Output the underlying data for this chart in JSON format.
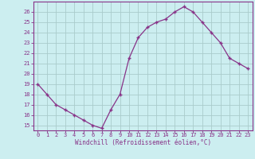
{
  "x": [
    0,
    1,
    2,
    3,
    4,
    5,
    6,
    7,
    8,
    9,
    10,
    11,
    12,
    13,
    14,
    15,
    16,
    17,
    18,
    19,
    20,
    21,
    22,
    23
  ],
  "y": [
    19,
    18,
    17,
    16.5,
    16,
    15.5,
    15,
    14.7,
    16.5,
    18,
    21.5,
    23.5,
    24.5,
    25,
    25.3,
    26,
    26.5,
    26,
    25,
    24,
    23,
    21.5,
    21,
    20.5
  ],
  "line_color": "#883388",
  "marker": "+",
  "bg_color": "#cceef0",
  "grid_color": "#aacccc",
  "xlabel": "Windchill (Refroidissement éolien,°C)",
  "xlim": [
    -0.5,
    23.5
  ],
  "ylim": [
    14.5,
    27
  ],
  "yticks": [
    15,
    16,
    17,
    18,
    19,
    20,
    21,
    22,
    23,
    24,
    25,
    26
  ],
  "xticks": [
    0,
    1,
    2,
    3,
    4,
    5,
    6,
    7,
    8,
    9,
    10,
    11,
    12,
    13,
    14,
    15,
    16,
    17,
    18,
    19,
    20,
    21,
    22,
    23
  ],
  "xlabel_color": "#883388",
  "tick_color": "#883388",
  "axis_line_color": "#883388",
  "font_family": "monospace",
  "tick_fontsize": 5.0,
  "xlabel_fontsize": 5.5,
  "markersize": 3.5,
  "linewidth": 0.9
}
